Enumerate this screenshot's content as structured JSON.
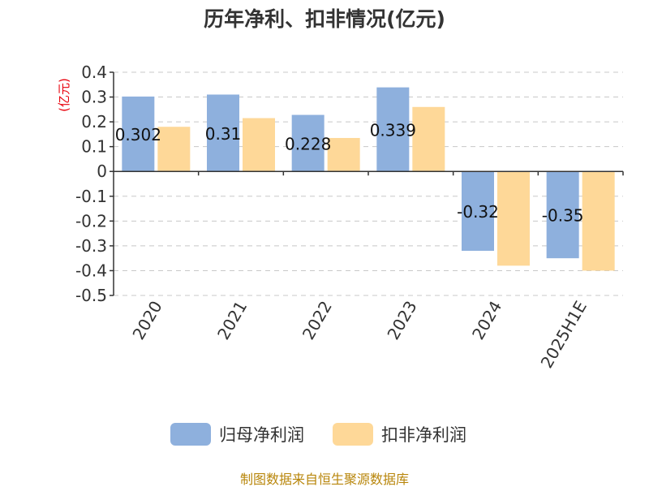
{
  "chart_data": {
    "type": "bar",
    "title": "历年净利、扣非情况(亿元)",
    "unit_label": "(亿元)",
    "categories": [
      "2020",
      "2021",
      "2022",
      "2023",
      "2024",
      "2025H1E"
    ],
    "series": [
      {
        "name": "归母净利润",
        "color": "#8eb0dd",
        "values": [
          0.302,
          0.31,
          0.228,
          0.339,
          -0.32,
          -0.35
        ],
        "labels": [
          "0.302",
          "0.31",
          "0.228",
          "0.339",
          "-0.32",
          "-0.35"
        ]
      },
      {
        "name": "扣非净利润",
        "color": "#fed898",
        "values": [
          0.18,
          0.215,
          0.135,
          0.26,
          -0.38,
          -0.4
        ]
      }
    ],
    "ylim": [
      -0.5,
      0.4
    ],
    "yticks": [
      "0.4",
      "0.3",
      "0.2",
      "0.1",
      "0",
      "-0.1",
      "-0.2",
      "-0.3",
      "-0.4",
      "-0.5"
    ],
    "grid": "horizontal-dashed",
    "legend_position": "bottom"
  },
  "footer": {
    "source": "制图数据来自恒生聚源数据库"
  }
}
